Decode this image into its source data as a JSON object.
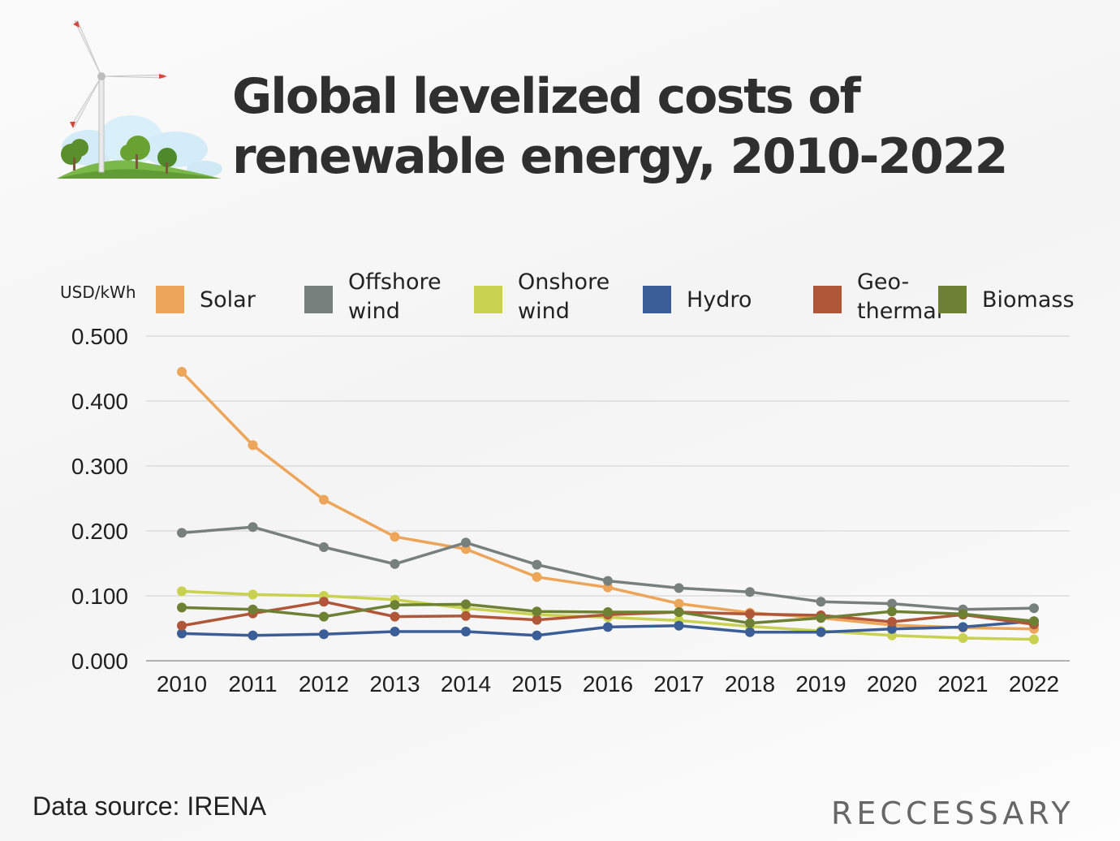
{
  "title": "Global levelized costs of renewable energy, 2010-2022",
  "source": "Data source: IRENA",
  "brand": "RECCESSARY",
  "colors": {
    "Solar": "#eda55a",
    "Offshore wind": "#78807d",
    "Onshore wind": "#c8d150",
    "Hydro": "#3b5e96",
    "Geo-thermal": "#b0573a",
    "Biomass": "#6e8034"
  },
  "chart_data": {
    "type": "line",
    "ylabel": "USD/kWh",
    "ylim": [
      0,
      0.5
    ],
    "yticks": [
      "0.000",
      "0.100",
      "0.200",
      "0.300",
      "0.400",
      "0.500"
    ],
    "x": [
      "2010",
      "2011",
      "2012",
      "2013",
      "2014",
      "2015",
      "2016",
      "2017",
      "2018",
      "2019",
      "2020",
      "2021",
      "2022"
    ],
    "grid": true,
    "legend_position": "top",
    "series": [
      {
        "name": "Solar",
        "legend": [
          "Solar"
        ],
        "color": "#eda55a",
        "values": [
          0.445,
          0.332,
          0.248,
          0.191,
          0.172,
          0.129,
          0.113,
          0.088,
          0.074,
          0.066,
          0.055,
          0.051,
          0.049
        ]
      },
      {
        "name": "Offshore wind",
        "legend": [
          "Offshore",
          "wind"
        ],
        "color": "#78807d",
        "values": [
          0.197,
          0.206,
          0.175,
          0.149,
          0.182,
          0.148,
          0.123,
          0.112,
          0.106,
          0.091,
          0.088,
          0.079,
          0.081
        ]
      },
      {
        "name": "Onshore wind",
        "legend": [
          "Onshore",
          "wind"
        ],
        "color": "#c8d150",
        "values": [
          0.107,
          0.102,
          0.1,
          0.094,
          0.081,
          0.071,
          0.067,
          0.062,
          0.053,
          0.046,
          0.039,
          0.035,
          0.033
        ]
      },
      {
        "name": "Hydro",
        "legend": [
          "Hydro"
        ],
        "color": "#3b5e96",
        "values": [
          0.042,
          0.039,
          0.041,
          0.045,
          0.045,
          0.039,
          0.052,
          0.054,
          0.044,
          0.044,
          0.049,
          0.052,
          0.061
        ]
      },
      {
        "name": "Geo-thermal",
        "legend": [
          "Geo-",
          "thermal"
        ],
        "color": "#b0573a",
        "values": [
          0.054,
          0.073,
          0.091,
          0.068,
          0.069,
          0.063,
          0.071,
          0.075,
          0.072,
          0.07,
          0.06,
          0.071,
          0.056
        ]
      },
      {
        "name": "Biomass",
        "legend": [
          "Biomass"
        ],
        "color": "#6e8034",
        "values": [
          0.082,
          0.079,
          0.068,
          0.086,
          0.087,
          0.076,
          0.075,
          0.075,
          0.058,
          0.066,
          0.076,
          0.072,
          0.061
        ]
      }
    ]
  }
}
